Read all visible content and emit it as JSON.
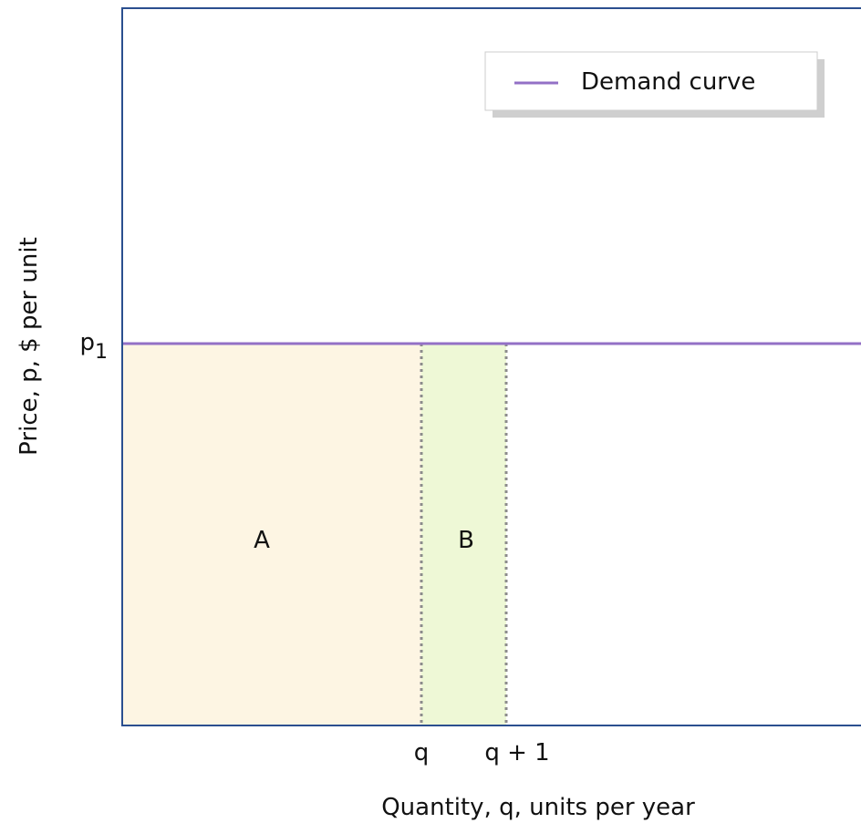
{
  "colors": {
    "frame": "#2b4f8f",
    "demand_line": "#9370c6",
    "area_a_fill": "#fdf5e3",
    "area_b_fill": "#eef8d6",
    "dotted": "#8c8c8c",
    "legend_shadow": "#cfcfcf"
  },
  "legend": {
    "label": "Demand curve"
  },
  "axes": {
    "xlabel": "Quantity, q, units per year",
    "ylabel": "Price, p, $ per unit",
    "x_ticks": [
      "q",
      "q + 1"
    ],
    "y_tick": {
      "base": "p",
      "subscript": "1"
    }
  },
  "regions": {
    "a": "A",
    "b": "B"
  },
  "chart_data": {
    "type": "line",
    "series": [
      {
        "name": "Demand curve",
        "shape": "horizontal line at p1"
      }
    ],
    "shaded_regions": [
      {
        "label": "A",
        "x_from": "0",
        "x_to": "q",
        "y_from": "0",
        "y_to": "p1"
      },
      {
        "label": "B",
        "x_from": "q",
        "x_to": "q + 1",
        "y_from": "0",
        "y_to": "p1"
      }
    ],
    "grid": false,
    "legend_position": "top-right"
  }
}
